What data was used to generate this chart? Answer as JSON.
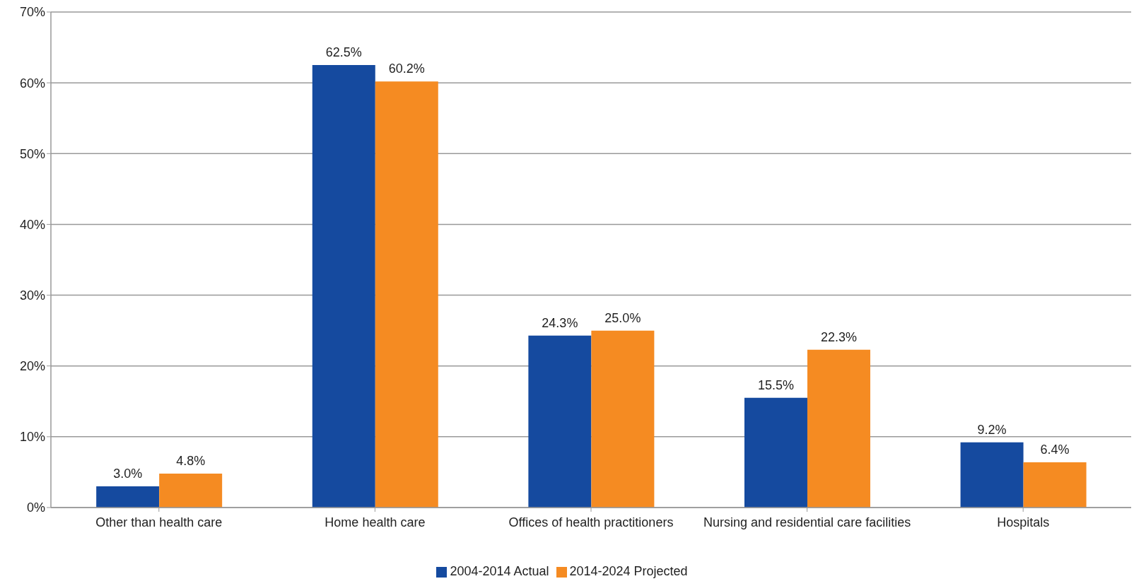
{
  "chart_data": {
    "type": "bar",
    "categories": [
      "Other than health care",
      "Home health care",
      "Offices of health practitioners",
      "Nursing and residential care facilities",
      "Hospitals"
    ],
    "series": [
      {
        "name": "2004-2014 Actual",
        "color": "#154a9f",
        "values": [
          3.0,
          62.5,
          24.3,
          15.5,
          9.2
        ],
        "value_labels": [
          "3.0%",
          "62.5%",
          "24.3%",
          "15.5%",
          "9.2%"
        ]
      },
      {
        "name": "2014-2024 Projected",
        "color": "#f58b22",
        "values": [
          4.8,
          60.2,
          25.0,
          22.3,
          6.4
        ],
        "value_labels": [
          "4.8%",
          "60.2%",
          "25.0%",
          "22.3%",
          "6.4%"
        ]
      }
    ],
    "ylim": [
      0,
      70
    ],
    "yticks": [
      {
        "value": 0,
        "label": "0%"
      },
      {
        "value": 10,
        "label": "10%"
      },
      {
        "value": 20,
        "label": "20%"
      },
      {
        "value": 30,
        "label": "30%"
      },
      {
        "value": 40,
        "label": "40%"
      },
      {
        "value": 50,
        "label": "50%"
      },
      {
        "value": 60,
        "label": "60%"
      },
      {
        "value": 70,
        "label": "70%"
      }
    ],
    "grid": "y",
    "legend": "bottom"
  }
}
